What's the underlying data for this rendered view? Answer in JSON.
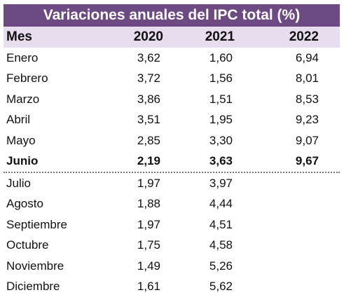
{
  "title": "Variaciones anuales del IPC total (%)",
  "headers": {
    "mes": "Mes",
    "y2020": "2020",
    "y2021": "2021",
    "y2022": "2022"
  },
  "colors": {
    "title_bg": "#6d4b82",
    "header_bg": "#e8dcef"
  },
  "rows": [
    {
      "mes": "Enero",
      "y2020": "3,62",
      "y2021": "1,60",
      "y2022": "6,94"
    },
    {
      "mes": "Febrero",
      "y2020": "3,72",
      "y2021": "1,56",
      "y2022": "8,01"
    },
    {
      "mes": "Marzo",
      "y2020": "3,86",
      "y2021": "1,51",
      "y2022": "8,53"
    },
    {
      "mes": "Abril",
      "y2020": "3,51",
      "y2021": "1,95",
      "y2022": "9,23"
    },
    {
      "mes": "Mayo",
      "y2020": "2,85",
      "y2021": "3,30",
      "y2022": "9,07"
    },
    {
      "mes": "Junio",
      "y2020": "2,19",
      "y2021": "3,63",
      "y2022": "9,67"
    },
    {
      "mes": "Julio",
      "y2020": "1,97",
      "y2021": "3,97",
      "y2022": ""
    },
    {
      "mes": "Agosto",
      "y2020": "1,88",
      "y2021": "4,44",
      "y2022": ""
    },
    {
      "mes": "Septiembre",
      "y2020": "1,97",
      "y2021": "4,51",
      "y2022": ""
    },
    {
      "mes": "Octubre",
      "y2020": "1,75",
      "y2021": "4,58",
      "y2022": ""
    },
    {
      "mes": "Noviembre",
      "y2020": "1,49",
      "y2021": "5,26",
      "y2022": ""
    },
    {
      "mes": "Diciembre",
      "y2020": "1,61",
      "y2021": "5,62",
      "y2022": ""
    }
  ]
}
